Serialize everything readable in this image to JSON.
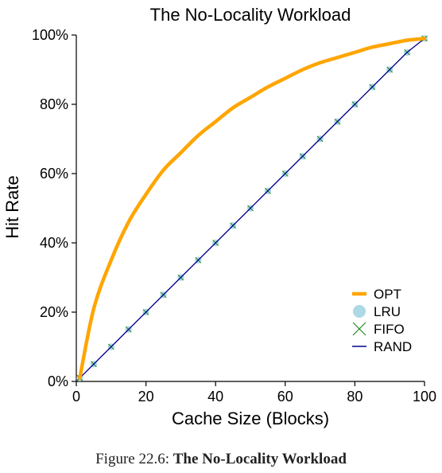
{
  "chart_data": {
    "type": "line",
    "title": "The No-Locality Workload",
    "xlabel": "Cache Size (Blocks)",
    "ylabel": "Hit Rate",
    "xlim": [
      0,
      100
    ],
    "ylim": [
      0,
      100
    ],
    "x_ticks": [
      0,
      20,
      40,
      60,
      80,
      100
    ],
    "y_ticks": [
      0,
      20,
      40,
      60,
      80,
      100
    ],
    "y_tick_labels": [
      "0%",
      "20%",
      "40%",
      "60%",
      "80%",
      "100%"
    ],
    "grid": false,
    "legend_position": "bottom-right",
    "x": [
      1,
      5,
      10,
      15,
      20,
      25,
      30,
      35,
      40,
      45,
      50,
      55,
      60,
      65,
      70,
      75,
      80,
      85,
      90,
      95,
      100
    ],
    "series": [
      {
        "name": "OPT",
        "color": "#FFA500",
        "marker": "line-thick",
        "values": [
          1,
          21,
          35,
          46,
          54,
          61,
          66,
          71,
          75,
          79,
          82,
          85,
          87.5,
          90,
          92,
          93.5,
          95,
          96.5,
          97.5,
          98.5,
          99
        ]
      },
      {
        "name": "LRU",
        "color": "#ADD8E6",
        "marker": "circle",
        "values": [
          1,
          5,
          10,
          15,
          20,
          25,
          30,
          35,
          40,
          45,
          50,
          55,
          60,
          65,
          70,
          75,
          80,
          85,
          90,
          95,
          99
        ]
      },
      {
        "name": "FIFO",
        "color": "#228B22",
        "marker": "x",
        "values": [
          1,
          5,
          10,
          15,
          20,
          25,
          30,
          35,
          40,
          45,
          50,
          55,
          60,
          65,
          70,
          75,
          80,
          85,
          90,
          95,
          99
        ]
      },
      {
        "name": "RAND",
        "color": "#00008B",
        "marker": "line-thin",
        "values": [
          1,
          5,
          10,
          15,
          20,
          25,
          30,
          35,
          40,
          45,
          50,
          55,
          60,
          65,
          70,
          75,
          80,
          85,
          90,
          95,
          99
        ]
      }
    ]
  },
  "caption": {
    "prefix": "Figure 22.6: ",
    "title": "The No-Locality Workload"
  }
}
